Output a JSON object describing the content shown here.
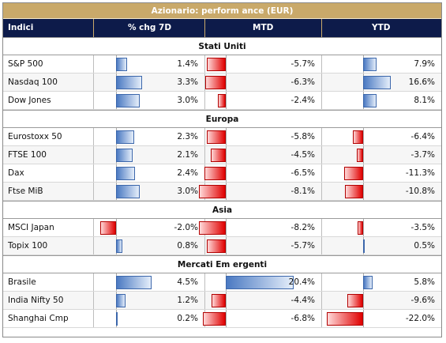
{
  "title": "Azionario: perform ance (EUR)",
  "headers": {
    "name": "Indici",
    "chg7d": "% chg 7D",
    "mtd": "MTD",
    "ytd": "YTD"
  },
  "colors": {
    "header_bg": "#0d1b4a",
    "title_bg": "#c9a96a",
    "positive": "#4a79c2",
    "negative": "#e00000"
  },
  "groups": [
    {
      "label": "Stati Uniti",
      "rows": [
        {
          "name": "S&P 500",
          "chg7d": "1.4%",
          "mtd": "-5.7%",
          "ytd": "7.9%",
          "v": [
            1.4,
            -5.7,
            7.9
          ]
        },
        {
          "name": "Nasdaq 100",
          "chg7d": "3.3%",
          "mtd": "-6.3%",
          "ytd": "16.6%",
          "v": [
            3.3,
            -6.3,
            16.6
          ]
        },
        {
          "name": "Dow Jones",
          "chg7d": "3.0%",
          "mtd": "-2.4%",
          "ytd": "8.1%",
          "v": [
            3.0,
            -2.4,
            8.1
          ]
        }
      ]
    },
    {
      "label": "Europa",
      "rows": [
        {
          "name": "Eurostoxx 50",
          "chg7d": "2.3%",
          "mtd": "-5.8%",
          "ytd": "-6.4%",
          "v": [
            2.3,
            -5.8,
            -6.4
          ]
        },
        {
          "name": "FTSE 100",
          "chg7d": "2.1%",
          "mtd": "-4.5%",
          "ytd": "-3.7%",
          "v": [
            2.1,
            -4.5,
            -3.7
          ]
        },
        {
          "name": "Dax",
          "chg7d": "2.4%",
          "mtd": "-6.5%",
          "ytd": "-11.3%",
          "v": [
            2.4,
            -6.5,
            -11.3
          ]
        },
        {
          "name": "Ftse MiB",
          "chg7d": "3.0%",
          "mtd": "-8.1%",
          "ytd": "-10.8%",
          "v": [
            3.0,
            -8.1,
            -10.8
          ]
        }
      ]
    },
    {
      "label": "Asia",
      "rows": [
        {
          "name": "MSCI Japan",
          "chg7d": "-2.0%",
          "mtd": "-8.2%",
          "ytd": "-3.5%",
          "v": [
            -2.0,
            -8.2,
            -3.5
          ]
        },
        {
          "name": "Topix 100",
          "chg7d": "0.8%",
          "mtd": "-5.7%",
          "ytd": "0.5%",
          "v": [
            0.8,
            -5.7,
            0.5
          ]
        }
      ]
    },
    {
      "label": "Mercati Em ergenti",
      "rows": [
        {
          "name": "Brasile",
          "chg7d": "4.5%",
          "mtd": "20.4%",
          "ytd": "5.8%",
          "v": [
            4.5,
            20.4,
            5.8
          ]
        },
        {
          "name": "India Nifty 50",
          "chg7d": "1.2%",
          "mtd": "-4.4%",
          "ytd": "-9.6%",
          "v": [
            1.2,
            -4.4,
            -9.6
          ]
        },
        {
          "name": "Shanghai Cmp",
          "chg7d": "0.2%",
          "mtd": "-6.8%",
          "ytd": "-22.0%",
          "v": [
            0.2,
            -6.8,
            -22.0
          ]
        }
      ]
    }
  ]
}
